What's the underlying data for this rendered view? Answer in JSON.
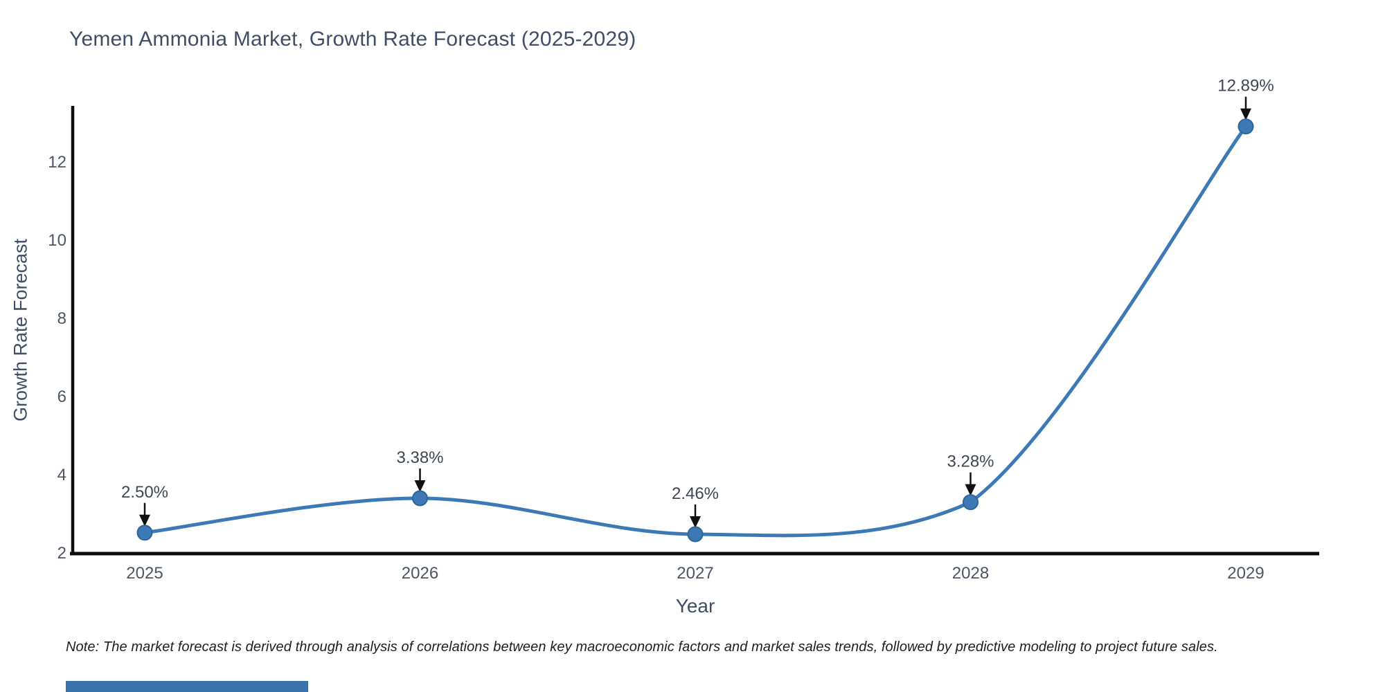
{
  "note": "Note: The market forecast is derived through analysis of correlations between key macroeconomic factors and market sales trends, followed by predictive modeling to project future sales.",
  "colors": {
    "line": "#3d7ab5",
    "marker_fill": "#3d7ab5",
    "marker_edge": "#2e6496",
    "axis_line": "#0d0d0d",
    "tick_text": "#4d5663",
    "annotation_text": "#3e4754",
    "arrow": "#111111",
    "title_text": "#404d66",
    "note_text": "#1e1e1e",
    "watermark_bar": "#3a72ab"
  },
  "chart_data": {
    "type": "line",
    "title": "Yemen Ammonia Market, Growth Rate Forecast (2025-2029)",
    "xlabel": "Year",
    "ylabel": "Growth Rate Forecast",
    "x": [
      2025,
      2026,
      2027,
      2028,
      2029
    ],
    "values": [
      2.5,
      3.38,
      2.46,
      3.28,
      12.89
    ],
    "point_labels": [
      "2.50%",
      "3.38%",
      "2.46%",
      "3.28%",
      "12.89%"
    ],
    "x_ticks": [
      "2025",
      "2026",
      "2027",
      "2028",
      "2029"
    ],
    "y_ticks": [
      2,
      4,
      6,
      8,
      10,
      12
    ],
    "ylim": [
      2,
      13.4
    ],
    "line_shape": "spline",
    "grid": false,
    "legend": "none",
    "annotations_arrow": true
  }
}
